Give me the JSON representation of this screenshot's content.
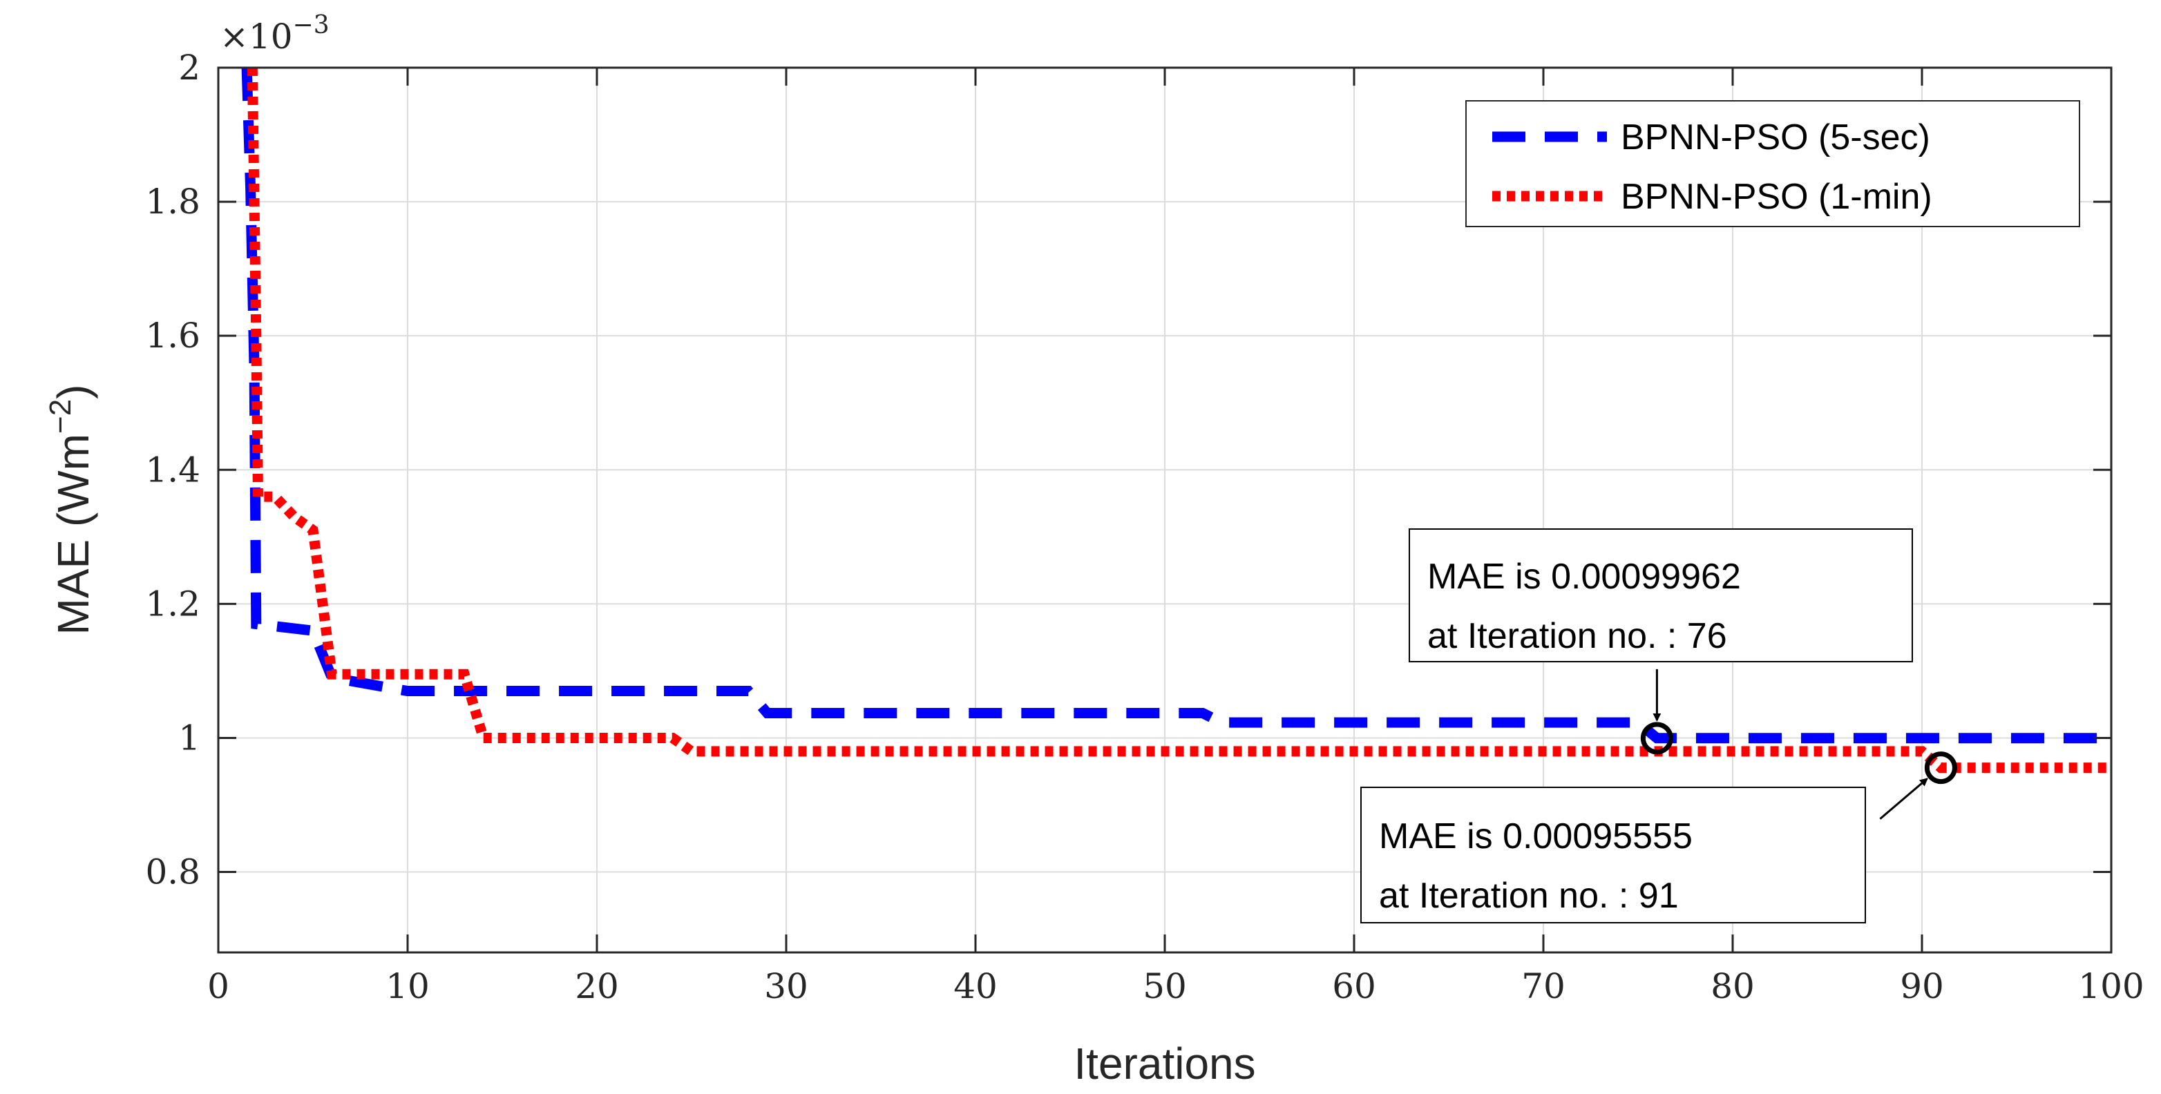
{
  "chart_data": {
    "type": "line",
    "title": "",
    "xlabel": "Iterations",
    "ylabel": "MAE (Wm",
    "ylabel_superscript": "−2",
    "ylabel_suffix": ")",
    "y_exponent_prefix": "×10",
    "y_exponent_power": "−3",
    "xlim": [
      0,
      100
    ],
    "ylim": [
      0.68,
      2.0
    ],
    "x_ticks": [
      0,
      10,
      20,
      30,
      40,
      50,
      60,
      70,
      80,
      90,
      100
    ],
    "x_tick_labels": [
      "0",
      "10",
      "20",
      "30",
      "40",
      "50",
      "60",
      "70",
      "80",
      "90",
      "100"
    ],
    "y_ticks": [
      0.8,
      1.0,
      1.2,
      1.4,
      1.6,
      1.8,
      2.0
    ],
    "y_tick_labels": [
      "0.8",
      "1",
      "1.2",
      "1.4",
      "1.6",
      "1.8",
      "2"
    ],
    "grid": true,
    "legend_position": "top-right",
    "series": [
      {
        "name": "BPNN-PSO (5-sec)",
        "color": "#0000ff",
        "style": "dashed",
        "points": [
          [
            1.5,
            2.0
          ],
          [
            1.7,
            1.82
          ],
          [
            1.9,
            1.55
          ],
          [
            2.0,
            1.17
          ],
          [
            5,
            1.16
          ],
          [
            6,
            1.09
          ],
          [
            9,
            1.075
          ],
          [
            10,
            1.07
          ],
          [
            28,
            1.07
          ],
          [
            29,
            1.037
          ],
          [
            52,
            1.037
          ],
          [
            53,
            1.023
          ],
          [
            75,
            1.023
          ],
          [
            76,
            0.99962
          ],
          [
            100,
            0.99962
          ]
        ]
      },
      {
        "name": "BPNN-PSO (1-min)",
        "color": "#ff0000",
        "style": "dotted",
        "points": [
          [
            1.8,
            2.0
          ],
          [
            2.0,
            1.6
          ],
          [
            2.1,
            1.36
          ],
          [
            3,
            1.36
          ],
          [
            4,
            1.33
          ],
          [
            5,
            1.31
          ],
          [
            6,
            1.095
          ],
          [
            13,
            1.095
          ],
          [
            14,
            1.0
          ],
          [
            24,
            1.0
          ],
          [
            25,
            0.98
          ],
          [
            90,
            0.98
          ],
          [
            91,
            0.95555
          ],
          [
            100,
            0.95555
          ]
        ]
      }
    ],
    "annotations": [
      {
        "line1": "MAE is 0.00099962",
        "line2": "at Iteration no. : 76",
        "x": 76,
        "y": 0.99962,
        "box_placement": "above-left",
        "arrow": "down"
      },
      {
        "line1": "MAE is 0.00095555",
        "line2": "at Iteration no. : 91",
        "x": 91,
        "y": 0.95555,
        "box_placement": "below-left",
        "arrow": "up-right"
      }
    ]
  }
}
